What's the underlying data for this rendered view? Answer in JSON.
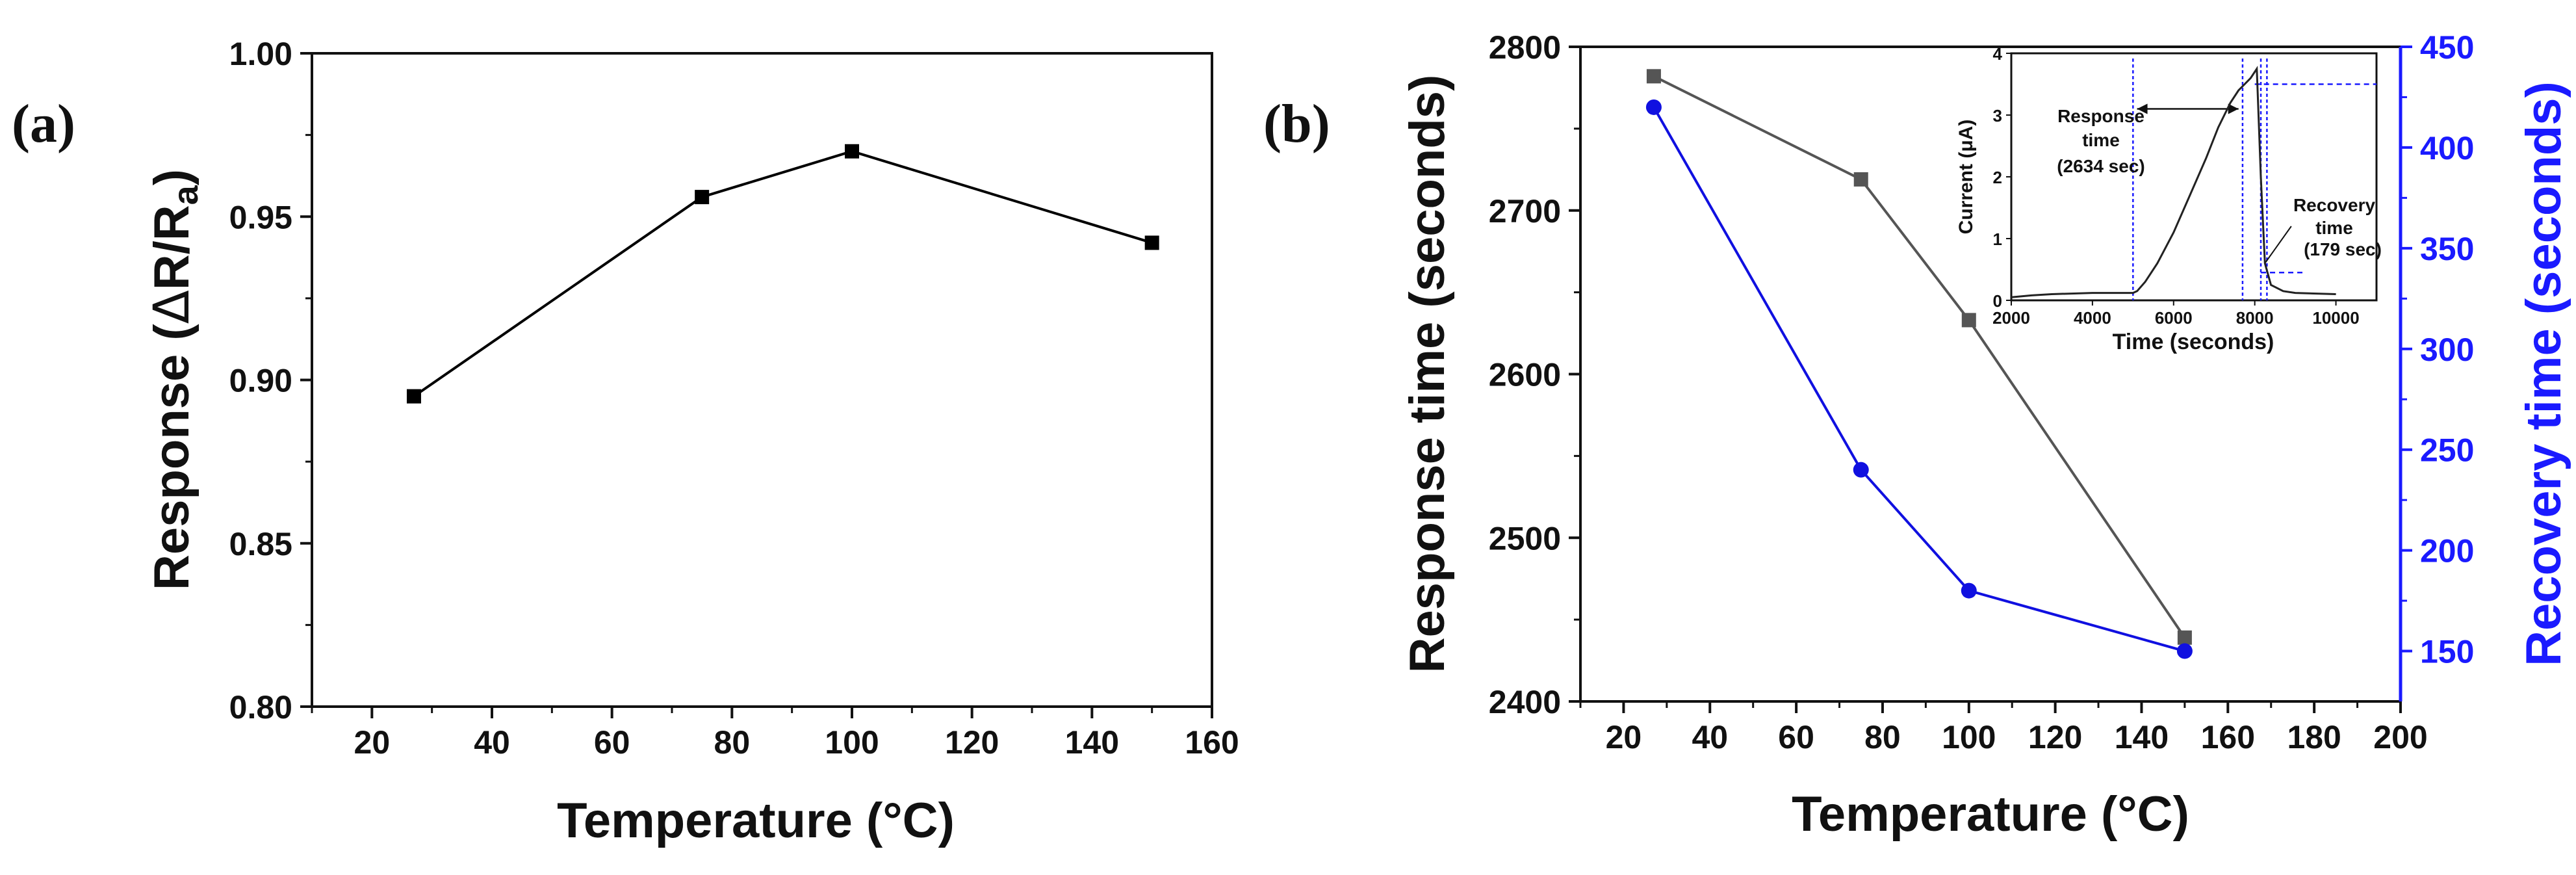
{
  "colors": {
    "axis": "#111111",
    "series_a": "#000000",
    "response_series": "#555555",
    "recovery_series": "#1010e0",
    "right_axis": "#1a1aff",
    "inset_marker": "#1a1aff"
  },
  "chart_data": [
    {
      "panel_label": "(a)",
      "type": "line",
      "title": "",
      "xlabel": "Temperature (°C)",
      "ylabel": "Response (ΔR/Ra)",
      "ylabel_parts": {
        "prefix": "Response (",
        "delta": "Δ",
        "r": "R/R",
        "sub": "a",
        "suffix": ")"
      },
      "xlim": [
        10,
        160
      ],
      "ylim": [
        0.8,
        1.0
      ],
      "x_ticks": [
        20,
        40,
        60,
        80,
        100,
        120,
        140,
        160
      ],
      "y_ticks": [
        0.8,
        0.85,
        0.9,
        0.95,
        1.0
      ],
      "y_tick_labels": [
        "0.80",
        "0.85",
        "0.90",
        "0.95",
        "1.00"
      ],
      "series": [
        {
          "name": "Response",
          "marker": "square",
          "x": [
            27,
            75,
            100,
            150
          ],
          "y": [
            0.895,
            0.956,
            0.97,
            0.942
          ]
        }
      ]
    },
    {
      "panel_label": "(b)",
      "type": "line",
      "title": "",
      "xlabel": "Temperature (°C)",
      "ylabel": "Response time (seconds)",
      "ylabel_right": "Recovery time (seconds)",
      "xlim": [
        10,
        200
      ],
      "ylim": [
        2400,
        2800
      ],
      "ylim_right": [
        125,
        450
      ],
      "x_ticks": [
        20,
        40,
        60,
        80,
        100,
        120,
        140,
        160,
        180,
        200
      ],
      "y_ticks": [
        2400,
        2500,
        2600,
        2700,
        2800
      ],
      "y_ticks_right": [
        150,
        200,
        250,
        300,
        350,
        400,
        450
      ],
      "series": [
        {
          "name": "Response time",
          "axis": "left",
          "marker": "square",
          "x": [
            27,
            75,
            100,
            150
          ],
          "y": [
            2782,
            2719,
            2633,
            2439
          ]
        },
        {
          "name": "Recovery time",
          "axis": "right",
          "marker": "circle",
          "x": [
            27,
            75,
            100,
            150
          ],
          "y": [
            420,
            240,
            180,
            150
          ]
        }
      ],
      "inset": {
        "type": "line",
        "xlabel": "Time (seconds)",
        "ylabel": "Current (μA)",
        "xlim": [
          2000,
          11000
        ],
        "ylim": [
          0,
          4
        ],
        "x_ticks": [
          2000,
          4000,
          6000,
          8000,
          10000
        ],
        "y_ticks": [
          0,
          1,
          2,
          3,
          4
        ],
        "series": [
          {
            "name": "Current",
            "x": [
              2000,
              2500,
              3000,
              4000,
              5000,
              5100,
              5300,
              5600,
              6000,
              6400,
              6800,
              7100,
              7400,
              7600,
              7750,
              7900,
              8050,
              8150,
              8250,
              8400,
              8700,
              9000,
              10000
            ],
            "y": [
              0.05,
              0.08,
              0.1,
              0.12,
              0.12,
              0.15,
              0.3,
              0.6,
              1.1,
              1.7,
              2.3,
              2.8,
              3.2,
              3.4,
              3.5,
              3.6,
              3.75,
              2.0,
              0.6,
              0.25,
              0.15,
              0.12,
              0.1
            ]
          }
        ],
        "annotations": {
          "response_label": "Response",
          "response_word": "time",
          "response_value": "(2634 sec)",
          "recovery_label": "Recovery",
          "recovery_word": "time",
          "recovery_value": "(179 sec)"
        }
      }
    }
  ]
}
